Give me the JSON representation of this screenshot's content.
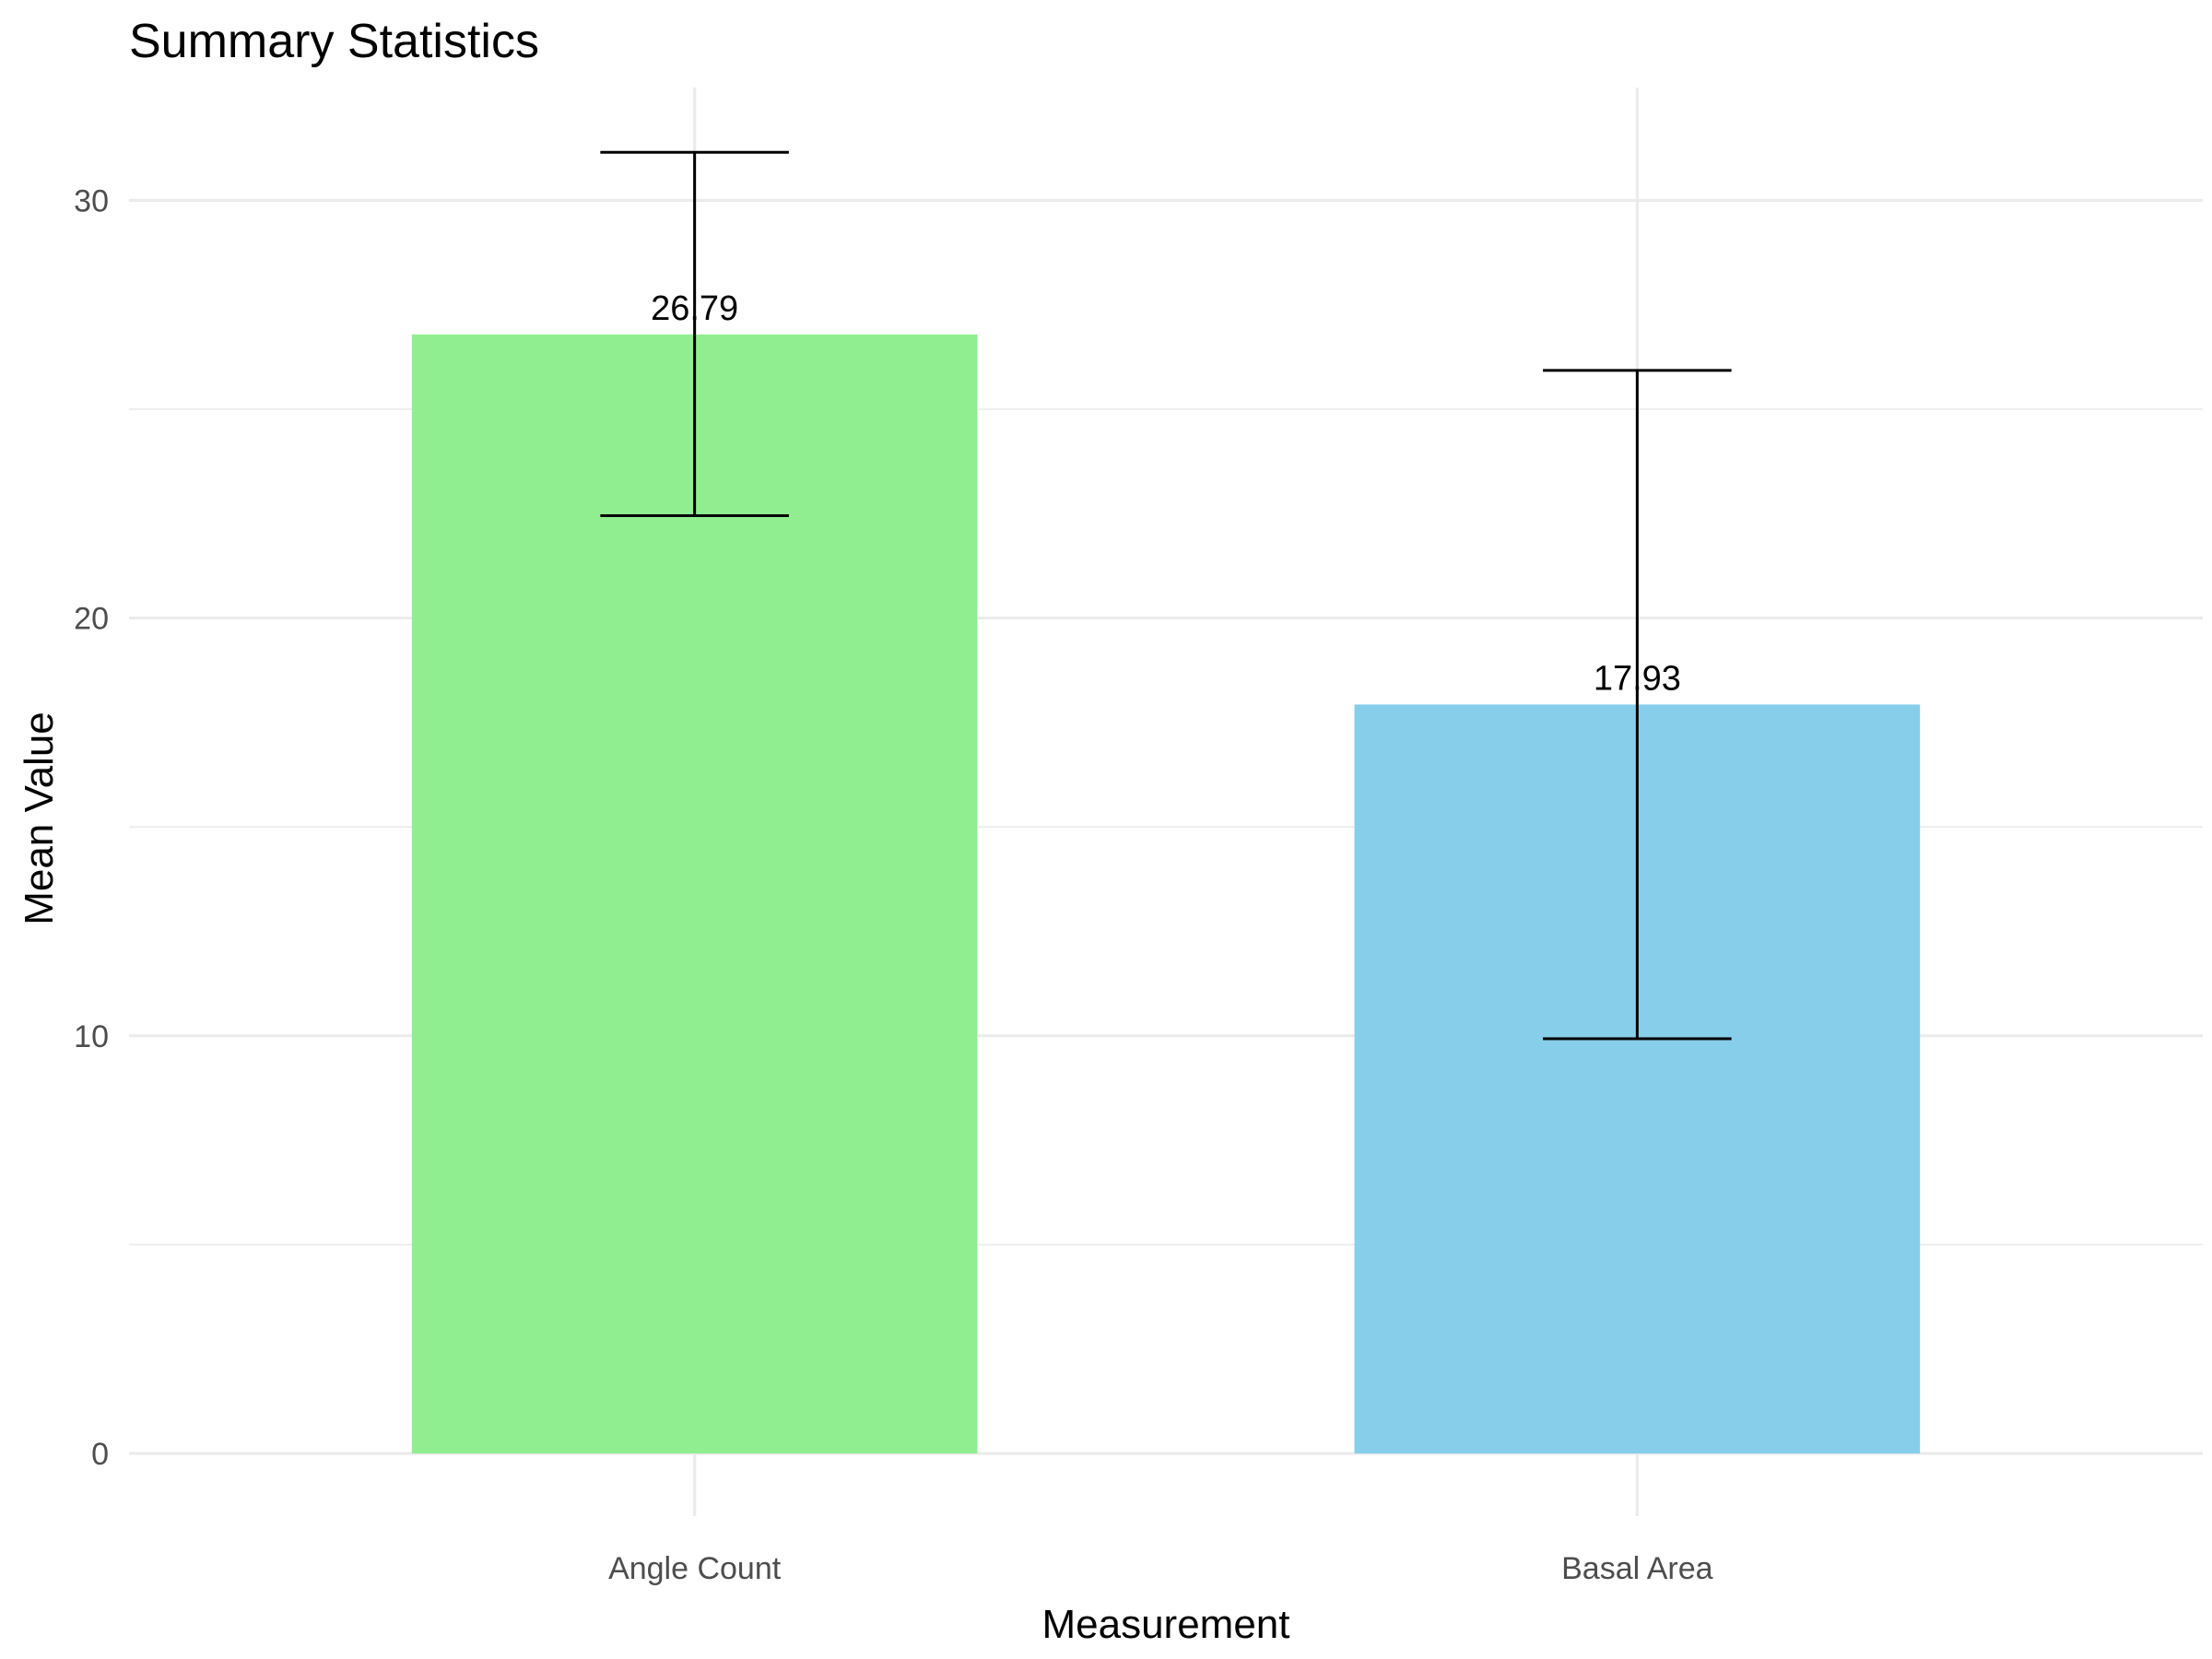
{
  "chart_data": {
    "type": "bar",
    "title": "Summary Statistics",
    "xlabel": "Measurement",
    "ylabel": "Mean Value",
    "categories": [
      "Angle Count",
      "Basal Area"
    ],
    "values": [
      26.79,
      17.93
    ],
    "value_labels": [
      "26.79",
      "17.93"
    ],
    "error_bars": [
      {
        "low": 22.45,
        "high": 31.15
      },
      {
        "low": 9.93,
        "high": 25.93
      }
    ],
    "bar_colors": [
      "#90ee90",
      "#87ceeb"
    ],
    "ylim": [
      -1.5,
      32.7
    ],
    "y_ticks": [
      0,
      10,
      20,
      30
    ],
    "y_tick_labels": [
      "0",
      "10",
      "20",
      "30"
    ],
    "y_minor_ticks": [
      5,
      15,
      25
    ],
    "grid": true,
    "legend": "none"
  }
}
